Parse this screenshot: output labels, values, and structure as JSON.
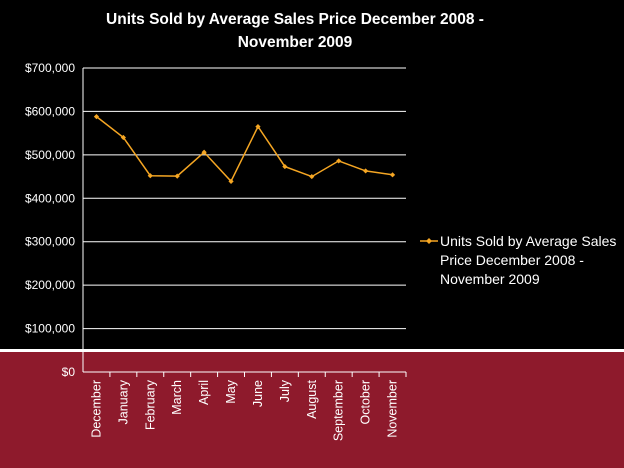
{
  "colors": {
    "background": "#000000",
    "band": "#8e1a2c",
    "line": "#f5a623",
    "grid": "#ffffff",
    "text": "#ffffff"
  },
  "chart_data": {
    "type": "line",
    "title": "Units Sold by Average Sales Price December 2008 - November 2009",
    "xlabel": "",
    "ylabel": "",
    "categories": [
      "December",
      "January",
      "February",
      "March",
      "April",
      "May",
      "June",
      "July",
      "August",
      "September",
      "October",
      "November"
    ],
    "series": [
      {
        "name": "Units Sold by Average Sales Price December 2008 - November 2009",
        "values": [
          588000,
          540000,
          452000,
          451000,
          506000,
          439000,
          565000,
          473000,
          450000,
          486000,
          463000,
          454000
        ]
      }
    ],
    "ylim": [
      0,
      700000
    ],
    "yticks": [
      "$0",
      "$100,000",
      "$200,000",
      "$300,000",
      "$400,000",
      "$500,000",
      "$600,000",
      "$700,000"
    ],
    "ytick_values": [
      0,
      100000,
      200000,
      300000,
      400000,
      500000,
      600000,
      700000
    ],
    "grid": true,
    "legend": "right"
  }
}
